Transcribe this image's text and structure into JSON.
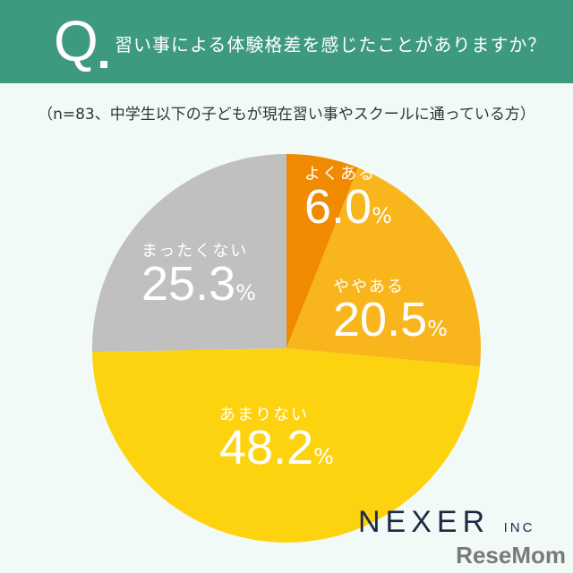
{
  "header": {
    "q_mark": "Q",
    "title": "習い事による体験格差を感じたことがありますか？"
  },
  "subtitle": "（n=83、中学生以下の子どもが現在習い事やスクールに通っている方）",
  "chart_data": {
    "type": "pie",
    "title": "習い事による体験格差を感じたことがありますか？",
    "start": "top",
    "direction": "clockwise",
    "slices": [
      {
        "label": "よくある",
        "value": 6.0,
        "display": "6.0",
        "color": "#f08a00"
      },
      {
        "label": "ややある",
        "value": 20.5,
        "display": "20.5",
        "color": "#f8b51c"
      },
      {
        "label": "あまりない",
        "value": 48.2,
        "display": "48.2",
        "color": "#fdd30f"
      },
      {
        "label": "まったくない",
        "value": 25.3,
        "display": "25.3",
        "color": "#c0c0c0"
      }
    ],
    "unit": "%"
  },
  "footer": {
    "logo": "NEXER",
    "logo_suffix": "INC",
    "watermark": "ReseMom"
  }
}
